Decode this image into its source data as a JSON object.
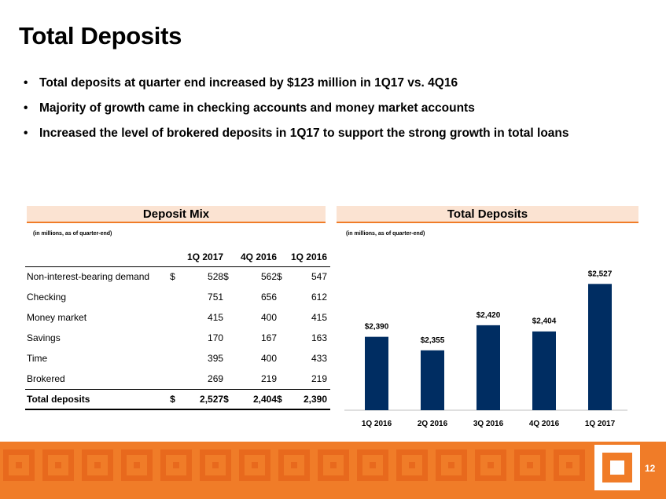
{
  "slide": {
    "title": "Total Deposits",
    "bullets": [
      "Total deposits at quarter end increased by $123 million in 1Q17 vs. 4Q16",
      "Majority of growth came in checking accounts and money market accounts",
      "Increased the level of brokered deposits in 1Q17 to support the strong growth in total loans"
    ],
    "page_number": "12"
  },
  "deposit_mix": {
    "heading": "Deposit Mix",
    "note": "(in millions, as of quarter-end)",
    "columns": [
      "1Q 2017",
      "4Q 2016",
      "1Q 2016"
    ],
    "rows": [
      {
        "label": "Non-interest-bearing demand",
        "cur": "$",
        "v1": "528",
        "cur2": "$",
        "v2": "562",
        "cur3": "$",
        "v3": "547"
      },
      {
        "label": "Checking",
        "cur": "",
        "v1": "751",
        "cur2": "",
        "v2": "656",
        "cur3": "",
        "v3": "612"
      },
      {
        "label": "Money market",
        "cur": "",
        "v1": "415",
        "cur2": "",
        "v2": "400",
        "cur3": "",
        "v3": "415"
      },
      {
        "label": "Savings",
        "cur": "",
        "v1": "170",
        "cur2": "",
        "v2": "167",
        "cur3": "",
        "v3": "163"
      },
      {
        "label": "Time",
        "cur": "",
        "v1": "395",
        "cur2": "",
        "v2": "400",
        "cur3": "",
        "v3": "433"
      },
      {
        "label": "Brokered",
        "cur": "",
        "v1": "269",
        "cur2": "",
        "v2": "219",
        "cur3": "",
        "v3": "219"
      },
      {
        "label": "Total deposits",
        "cur": "$",
        "v1": "2,527",
        "cur2": "$",
        "v2": "2,404",
        "cur3": "$",
        "v3": "2,390"
      }
    ]
  },
  "total_deposits_panel": {
    "heading": "Total Deposits",
    "note": "(in millions, as of quarter-end)"
  },
  "colors": {
    "accent_orange": "#f07c28",
    "bar_navy": "#002d62"
  },
  "chart_data": {
    "type": "bar",
    "categories": [
      "1Q 2016",
      "2Q 2016",
      "3Q 2016",
      "4Q 2016",
      "1Q 2017"
    ],
    "values": [
      2390,
      2355,
      2420,
      2404,
      2527
    ],
    "data_labels": [
      "$2,390",
      "$2,355",
      "$2,420",
      "$2,404",
      "$2,527"
    ],
    "title": "Total Deposits",
    "xlabel": "",
    "ylabel": "",
    "ylim": [
      2200,
      2550
    ],
    "grid": false,
    "legend": "none"
  }
}
